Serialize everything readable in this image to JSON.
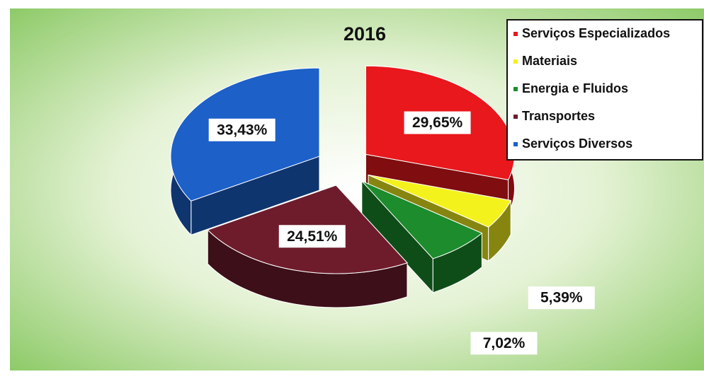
{
  "chart_data": {
    "type": "pie",
    "title": "2016",
    "categories": [
      "Serviços Especializados",
      "Materiais",
      "Energia e Fluidos",
      "Transportes",
      "Serviços Diversos"
    ],
    "values": [
      29.65,
      5.39,
      7.02,
      24.51,
      33.43
    ],
    "value_labels": [
      "29,65%",
      "5,39%",
      "7,02%",
      "24,51%",
      "33,43%"
    ],
    "colors": [
      "#e8181c",
      "#f4f21c",
      "#1c8c2c",
      "#6e1c2c",
      "#1c60c8"
    ],
    "legend": "top-right"
  }
}
